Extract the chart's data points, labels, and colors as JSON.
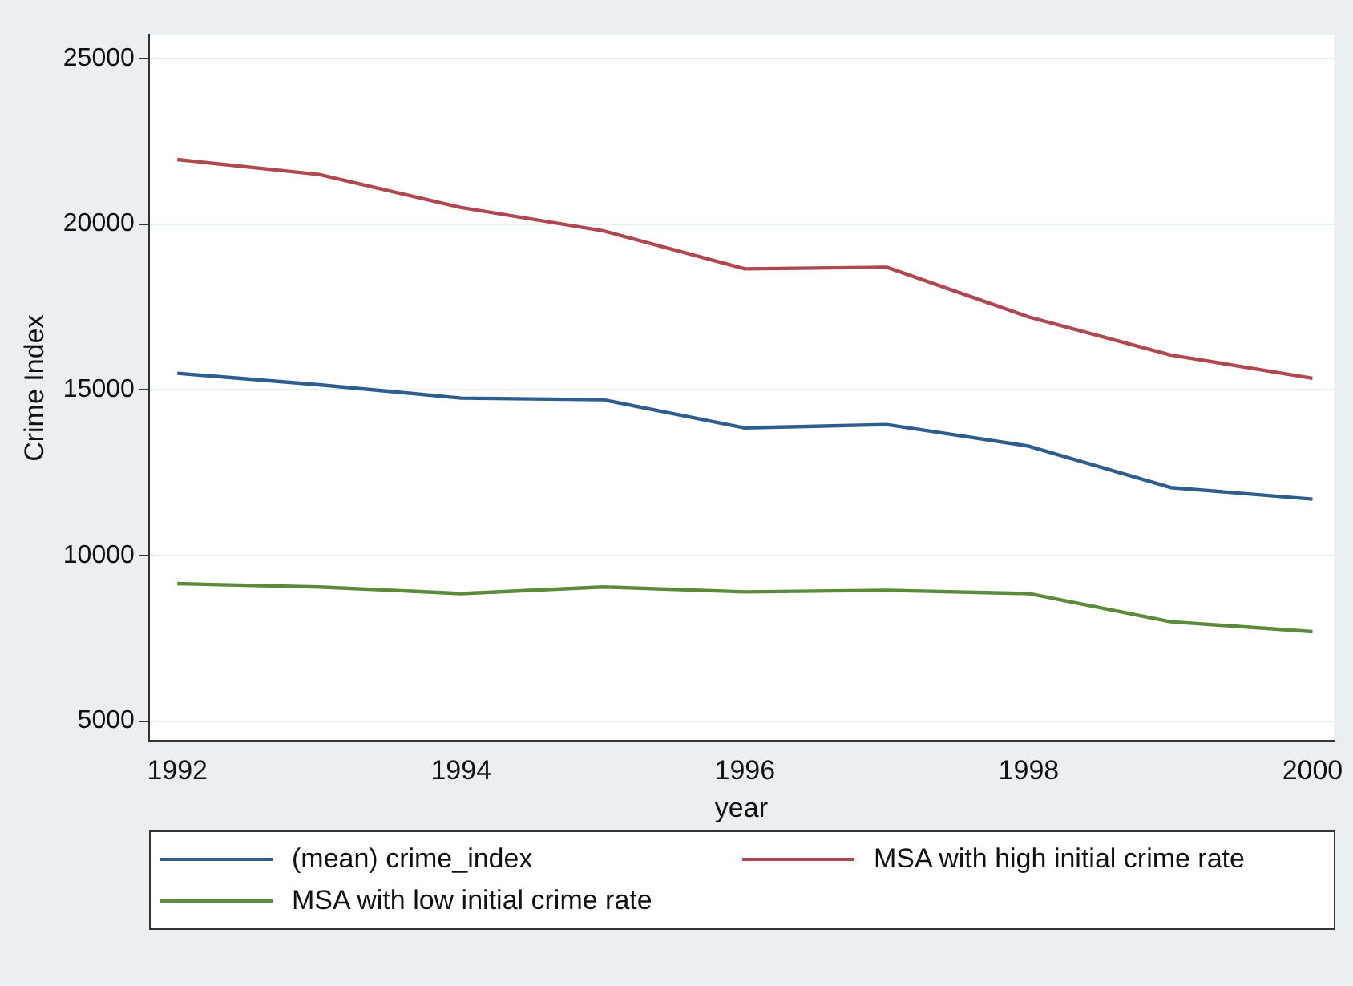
{
  "chart_data": {
    "type": "line",
    "xlabel": "year",
    "ylabel": "Crime Index",
    "x": [
      1992,
      1993,
      1994,
      1995,
      1996,
      1997,
      1998,
      1999,
      2000
    ],
    "xlim": [
      1991.8,
      2000.15
    ],
    "xticks": [
      1992,
      1994,
      1996,
      1998,
      2000
    ],
    "ylim": [
      4400,
      25700
    ],
    "yticks": [
      5000,
      10000,
      15000,
      20000,
      25000
    ],
    "grid": "y",
    "legend": "bottom",
    "marker": "none",
    "line_style": "solid",
    "series": [
      {
        "name": "(mean) crime_index",
        "color": "#2e5e8e",
        "values": [
          15500,
          15150,
          14750,
          14700,
          13850,
          13950,
          13300,
          12050,
          11700
        ]
      },
      {
        "name": "MSA with high initial crime rate",
        "color": "#b04850",
        "values": [
          21950,
          21500,
          20500,
          19800,
          18650,
          18700,
          17200,
          16050,
          15350
        ]
      },
      {
        "name": "MSA with low initial crime rate",
        "color": "#5a8a3a",
        "values": [
          9150,
          9050,
          8850,
          9050,
          8900,
          8950,
          8850,
          8000,
          7700
        ]
      }
    ]
  }
}
